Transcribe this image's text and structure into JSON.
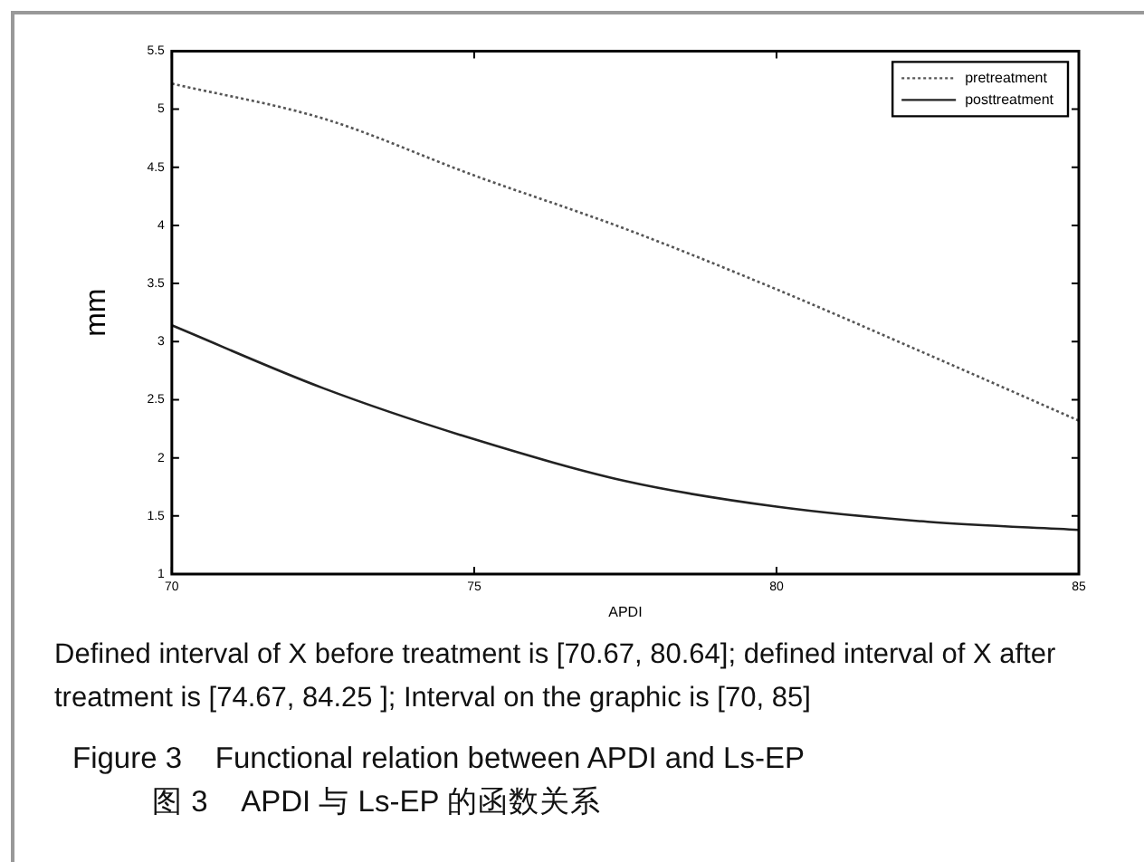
{
  "chart_data": {
    "type": "line",
    "title": "Figure 3    Functional relation between APDI and Ls-EP",
    "subtitle": "图 3    APDI 与 Ls-EP 的函数关系",
    "xlabel": "APDI",
    "ylabel": "mm",
    "annotations": [
      "Defined interval of X before treatment is [70.67, 80.64]; defined interval of X after treatment is [74.67, 84.25 ]; Interval on the graphic is [70, 85]"
    ],
    "x": [
      70,
      72.5,
      75,
      77.5,
      80,
      82.5,
      85
    ],
    "series": [
      {
        "name": "pretreatment",
        "color": "#555555",
        "line_style": "dotted",
        "values": [
          5.22,
          4.92,
          4.43,
          3.97,
          3.45,
          2.89,
          2.32
        ]
      },
      {
        "name": "posttreatment",
        "color": "#222222",
        "line_style": "solid",
        "values": [
          3.14,
          2.6,
          2.16,
          1.8,
          1.58,
          1.45,
          1.38
        ]
      }
    ],
    "xlim": [
      70,
      85
    ],
    "xticks": [
      70,
      75,
      80,
      85
    ],
    "ylim": [
      1,
      5.5
    ],
    "yticks": [
      1,
      1.5,
      2,
      2.5,
      3,
      3.5,
      4,
      4.5,
      5,
      5.5
    ],
    "grid": false,
    "legend": "top right",
    "marker": "none"
  }
}
